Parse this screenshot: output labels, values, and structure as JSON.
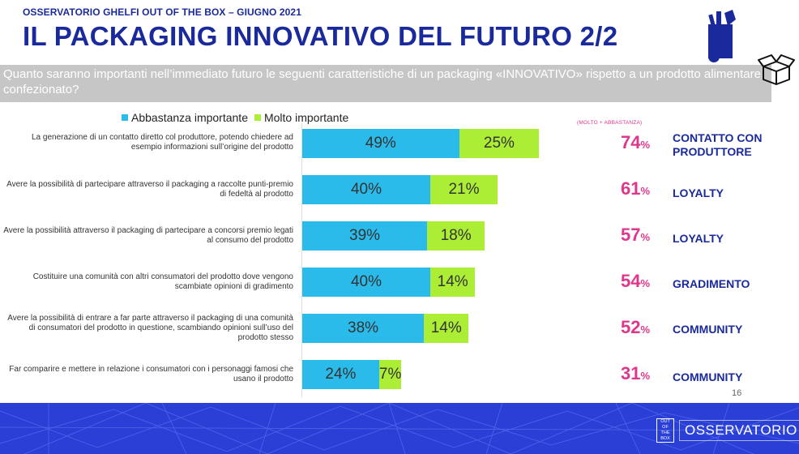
{
  "header": {
    "kicker": "OSSERVATORIO GHELFI OUT OF THE BOX – GIUGNO 2021",
    "title": "IL PACKAGING INNOVATIVO DEL FUTURO 2/2",
    "question": "Quanto saranno importanti nell’immediato futuro le seguenti caratteristiche di un packaging «INNOVATIVO» rispetto a un prodotto alimentare confezionato?"
  },
  "legend": {
    "items": [
      {
        "label": "Abbastanza importante",
        "color": "#2bbbeb"
      },
      {
        "label": "Molto importante",
        "color": "#aced36"
      }
    ]
  },
  "sum_note": "(MOLTO + ABBASTANZA)",
  "chart_data": {
    "type": "bar",
    "orientation": "horizontal",
    "stacked": true,
    "categories": [
      "La generazione di un contatto diretto col produttore, potendo chiedere ad esempio informazioni sull’origine del prodotto",
      "Avere la possibilità di partecipare attraverso il packaging a raccolte punti-premio di fedeltà al prodotto",
      "Avere la possibilità attraverso il packaging di partecipare a concorsi premio legati al consumo del prodotto",
      "Costituire una comunità con altri consumatori del prodotto dove vengono scambiate opinioni di gradimento",
      "Avere la possibilità di entrare a far parte attraverso il packaging di una comunità di consumatori del prodotto in questione, scambiando opinioni sull’uso del prodotto stesso",
      "Far comparire e mettere in relazione i consumatori con i personaggi famosi che usano il prodotto"
    ],
    "series": [
      {
        "name": "Abbastanza importante",
        "color": "#2bbbeb",
        "values": [
          49,
          40,
          39,
          40,
          38,
          24
        ]
      },
      {
        "name": "Molto importante",
        "color": "#aced36",
        "values": [
          25,
          21,
          18,
          14,
          14,
          7
        ]
      }
    ],
    "value_labels_abbastanza": [
      "49%",
      "40%",
      "39%",
      "40%",
      "38%",
      "24%"
    ],
    "value_labels_molto": [
      "25%",
      "21%",
      "18%",
      "14%",
      "14%",
      "7%"
    ],
    "totals": [
      "74",
      "61",
      "57",
      "54",
      "52",
      "31"
    ],
    "total_unit": "%",
    "categories_right": [
      "CONTATTO CON PRODUTTORE",
      "LOYALTY",
      "LOYALTY",
      "GRADIMENTO",
      "COMMUNITY",
      "COMMUNITY"
    ],
    "xlim": [
      0,
      100
    ]
  },
  "page_number": "16",
  "footer": {
    "logo_box": "OUT OF THE BOX",
    "logo_text": "OSSERVATORIO",
    "color": "#2a3fd6"
  }
}
